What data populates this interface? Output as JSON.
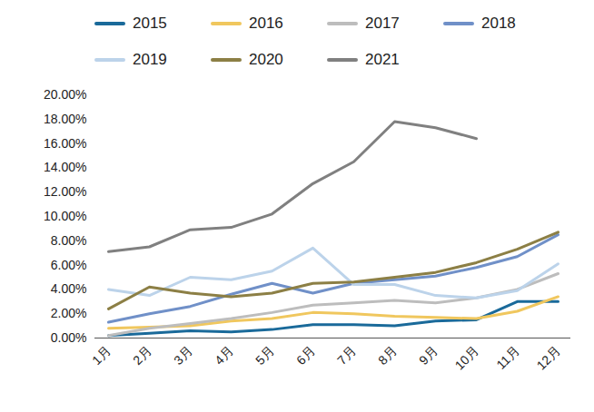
{
  "chart_data": {
    "type": "line",
    "categories": [
      "1月",
      "2月",
      "3月",
      "4月",
      "5月",
      "6月",
      "7月",
      "8月",
      "9月",
      "10月",
      "11月",
      "12月"
    ],
    "series": [
      {
        "name": "2015",
        "color": "#1a6a9a",
        "values": [
          0.2,
          0.4,
          0.6,
          0.5,
          0.7,
          1.1,
          1.1,
          1.0,
          1.4,
          1.5,
          3.0,
          3.0
        ]
      },
      {
        "name": "2016",
        "color": "#f0c75e",
        "values": [
          0.8,
          0.9,
          1.0,
          1.4,
          1.6,
          2.1,
          2.0,
          1.8,
          1.7,
          1.6,
          2.2,
          3.4
        ]
      },
      {
        "name": "2017",
        "color": "#bdbdbd",
        "values": [
          0.2,
          0.8,
          1.2,
          1.6,
          2.1,
          2.7,
          2.9,
          3.1,
          2.9,
          3.3,
          4.0,
          5.3
        ]
      },
      {
        "name": "2018",
        "color": "#7090c8",
        "values": [
          1.3,
          2.0,
          2.6,
          3.6,
          4.5,
          3.7,
          4.5,
          4.8,
          5.1,
          5.8,
          6.7,
          8.5
        ]
      },
      {
        "name": "2019",
        "color": "#bcd3ea",
        "values": [
          4.0,
          3.5,
          5.0,
          4.8,
          5.5,
          7.4,
          4.4,
          4.4,
          3.5,
          3.3,
          3.9,
          6.1
        ]
      },
      {
        "name": "2020",
        "color": "#8c7f45",
        "values": [
          2.4,
          4.2,
          3.7,
          3.4,
          3.7,
          4.5,
          4.6,
          5.0,
          5.4,
          6.2,
          7.3,
          8.7
        ]
      },
      {
        "name": "2021",
        "color": "#808080",
        "values": [
          7.1,
          7.5,
          8.9,
          9.1,
          10.2,
          12.7,
          14.5,
          17.8,
          17.3,
          16.4,
          null,
          null
        ]
      }
    ],
    "ylim": [
      0,
      20
    ],
    "yticks": [
      {
        "value": 0,
        "label": "0.00%"
      },
      {
        "value": 2,
        "label": "2.00%"
      },
      {
        "value": 4,
        "label": "4.00%"
      },
      {
        "value": 6,
        "label": "6.00%"
      },
      {
        "value": 8,
        "label": "8.00%"
      },
      {
        "value": 10,
        "label": "10.00%"
      },
      {
        "value": 12,
        "label": "12.00%"
      },
      {
        "value": 14,
        "label": "14.00%"
      },
      {
        "value": 16,
        "label": "16.00%"
      },
      {
        "value": 18,
        "label": "18.00%"
      },
      {
        "value": 20,
        "label": "20.00%"
      }
    ],
    "grid": false,
    "legend": "top"
  }
}
